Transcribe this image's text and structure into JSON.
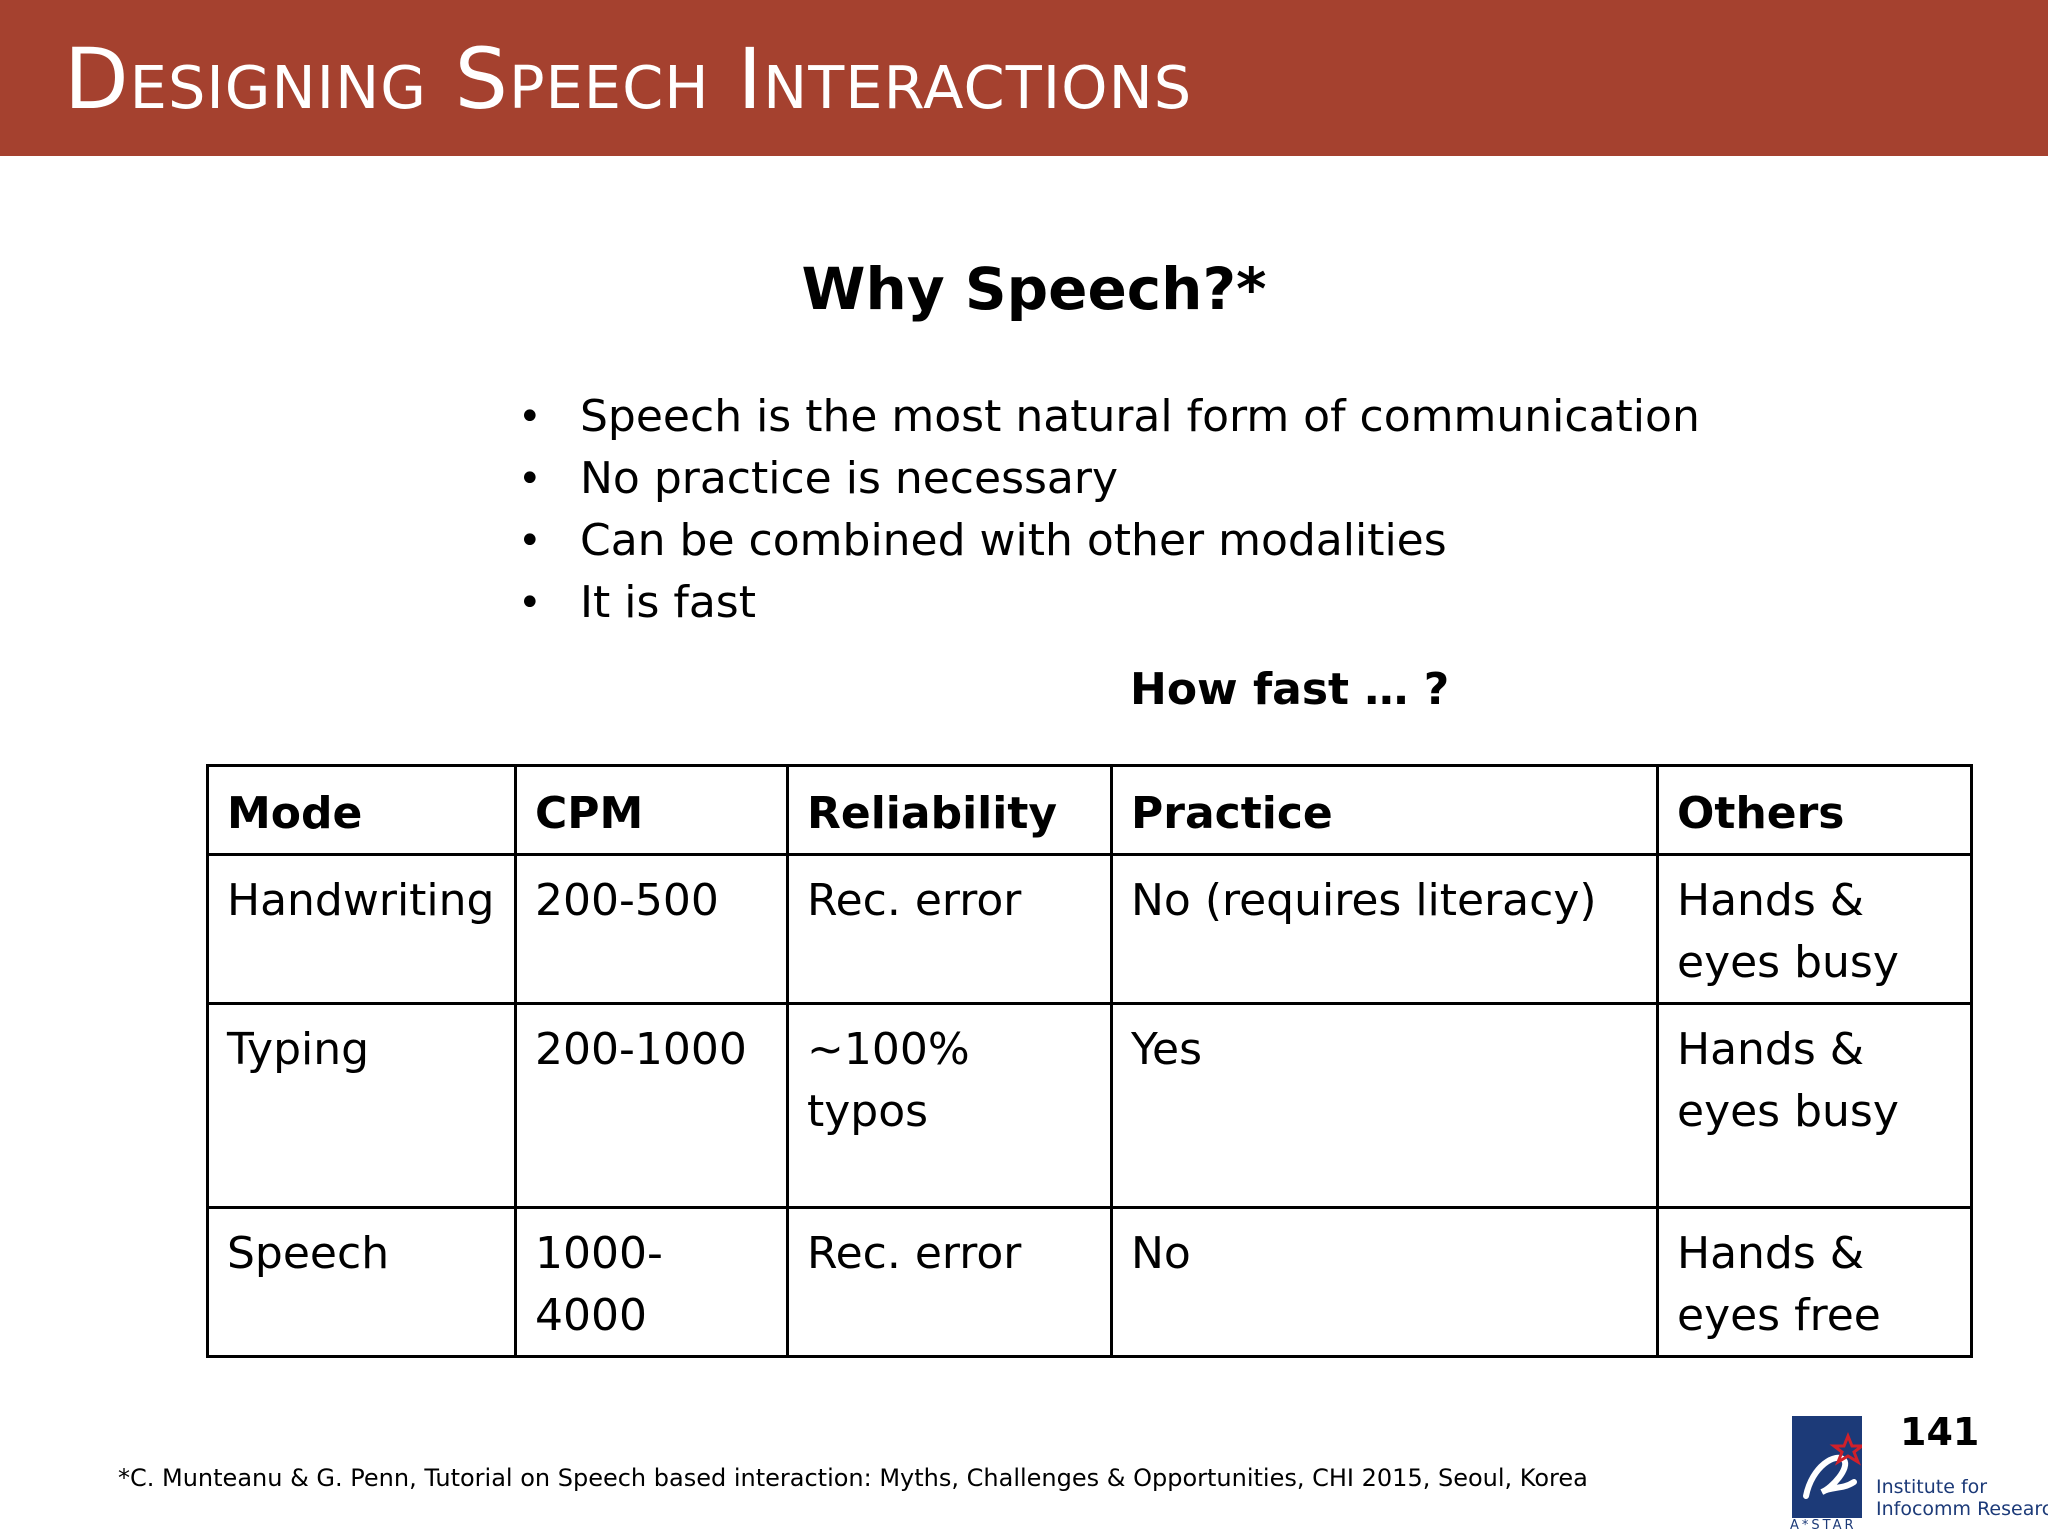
{
  "slide": {
    "title": "Designing Speech Interactions",
    "subtitle": "Why Speech?*",
    "bullets": [
      "Speech is the  most natural form of communication",
      "No practice is necessary",
      "Can be combined with other modalities",
      "It is fast"
    ],
    "bullet_glyph": "•",
    "how_fast": "How fast … ?",
    "table": {
      "headers": [
        "Mode",
        "CPM",
        "Reliability",
        "Practice",
        "Others"
      ],
      "rows": [
        [
          "Handwriting",
          "200-500",
          "Rec. error",
          "No (requires literacy)",
          "Hands & eyes busy"
        ],
        [
          "Typing",
          "200-1000",
          "~100% typos",
          "Yes",
          "Hands & eyes busy"
        ],
        [
          "Speech",
          "1000-4000",
          "Rec. error",
          "No",
          "Hands & eyes free"
        ]
      ]
    },
    "footnote": "*C. Munteanu & G. Penn, Tutorial on Speech based interaction: Myths, Challenges & Opportunities, CHI 2015, Seoul, Korea",
    "page_number": "141",
    "logo": {
      "caption": "A*STAR",
      "institute_line1": "Institute for",
      "institute_line2": "Infocomm Research"
    },
    "colors": {
      "title_bar": "#a5412f",
      "logo_blue": "#1c3a78",
      "logo_red": "#d0202a"
    }
  }
}
